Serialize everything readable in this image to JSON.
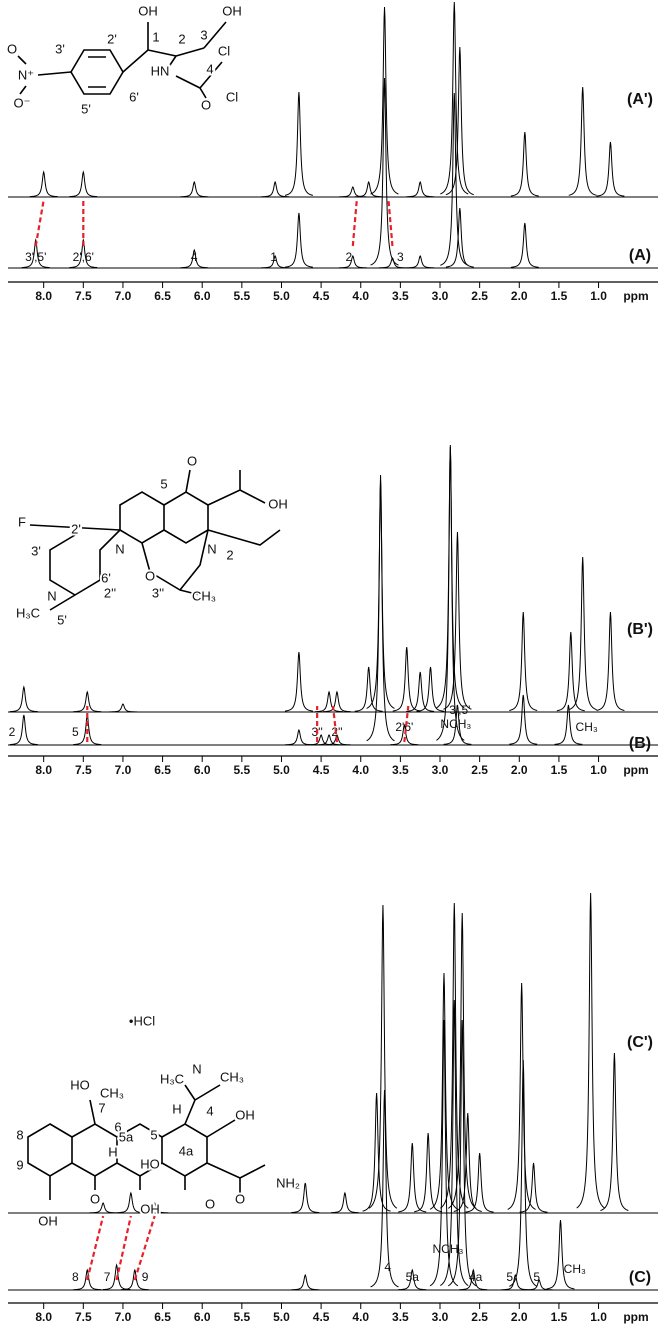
{
  "chart_data": [
    {
      "type": "spectrum",
      "xlabel": "ppm",
      "xlim": [
        8.45,
        0.25
      ],
      "xticks": [
        {
          "value": 8,
          "label": "8.0"
        },
        {
          "value": 7.5,
          "label": "7.5"
        },
        {
          "value": 7,
          "label": "7.0"
        },
        {
          "value": 6.5,
          "label": "6.5"
        },
        {
          "value": 6,
          "label": "6.0"
        },
        {
          "value": 5.5,
          "label": "5.5"
        },
        {
          "value": 5,
          "label": "5.0"
        },
        {
          "value": 4.5,
          "label": "4.5"
        },
        {
          "value": 4,
          "label": "4.0"
        },
        {
          "value": 3.5,
          "label": "3.5"
        },
        {
          "value": 3,
          "label": "3.0"
        },
        {
          "value": 2.5,
          "label": "2.5"
        },
        {
          "value": 2,
          "label": "2.0"
        },
        {
          "value": 1.5,
          "label": "1.5"
        },
        {
          "value": 1,
          "label": "1.0"
        }
      ],
      "series": [
        {
          "name": "(A')",
          "color": "#000000",
          "x": [
            8.0,
            7.5,
            6.1,
            5.08,
            4.78,
            4.1,
            3.9,
            3.7,
            3.25,
            2.82,
            2.75,
            1.93,
            1.2,
            0.85
          ],
          "values": [
            25,
            25,
            15,
            15,
            105,
            10,
            15,
            190,
            15,
            195,
            150,
            65,
            110,
            55
          ]
        },
        {
          "name": "(A)",
          "color": "#000000",
          "x": [
            8.1,
            7.5,
            6.1,
            5.08,
            4.78,
            4.1,
            3.7,
            3.6,
            3.25,
            2.82,
            2.75,
            1.93
          ],
          "values": [
            28,
            28,
            18,
            12,
            55,
            12,
            190,
            10,
            12,
            175,
            60,
            45
          ]
        }
      ],
      "annotations": [
        {
          "text": "3',5'",
          "x": 8.1
        },
        {
          "text": "2',6'",
          "x": 7.5
        },
        {
          "text": "4",
          "x": 6.1
        },
        {
          "text": "1",
          "x": 5.1
        },
        {
          "text": "2",
          "x": 4.15
        },
        {
          "text": "3",
          "x": 3.5
        }
      ],
      "correlations": [
        [
          8.1,
          8.0
        ],
        [
          7.5,
          7.5
        ],
        [
          4.1,
          4.05
        ],
        [
          3.6,
          3.65
        ]
      ],
      "structure_labels": [
        "OH",
        "1",
        "2",
        "3",
        "OH",
        "2'",
        "3'",
        "6'",
        "5'",
        "HN",
        "4",
        "Cl",
        "Cl",
        "O",
        "N⁺",
        "O",
        "O⁻"
      ]
    },
    {
      "type": "spectrum",
      "xlabel": "ppm",
      "xlim": [
        8.45,
        0.25
      ],
      "xticks": [
        {
          "value": 8,
          "label": "8.0"
        },
        {
          "value": 7.5,
          "label": "7.5"
        },
        {
          "value": 7,
          "label": "7.0"
        },
        {
          "value": 6.5,
          "label": "6.5"
        },
        {
          "value": 6,
          "label": "6.0"
        },
        {
          "value": 5.5,
          "label": "5.5"
        },
        {
          "value": 5,
          "label": "5.0"
        },
        {
          "value": 4.5,
          "label": "4.5"
        },
        {
          "value": 4,
          "label": "4.0"
        },
        {
          "value": 3.5,
          "label": "3.5"
        },
        {
          "value": 3,
          "label": "3.0"
        },
        {
          "value": 2.5,
          "label": "2.5"
        },
        {
          "value": 2,
          "label": "2.0"
        },
        {
          "value": 1.5,
          "label": "1.5"
        },
        {
          "value": 1,
          "label": "1.0"
        }
      ],
      "series": [
        {
          "name": "(B')",
          "color": "#000000",
          "x": [
            8.25,
            7.45,
            7.0,
            4.78,
            4.4,
            4.3,
            3.9,
            3.75,
            3.42,
            3.25,
            3.12,
            2.87,
            2.78,
            1.95,
            1.35,
            1.2,
            0.85
          ],
          "values": [
            25,
            20,
            8,
            60,
            20,
            20,
            45,
            230,
            65,
            40,
            45,
            265,
            180,
            100,
            80,
            155,
            100
          ]
        },
        {
          "name": "(B)",
          "color": "#000000",
          "x": [
            8.25,
            7.45,
            4.78,
            4.5,
            4.4,
            4.3,
            3.75,
            3.45,
            2.87,
            2.78,
            1.95,
            1.38
          ],
          "values": [
            30,
            30,
            15,
            10,
            10,
            10,
            270,
            20,
            300,
            40,
            50,
            40
          ]
        }
      ],
      "annotations": [
        {
          "text": "2",
          "x": 8.4
        },
        {
          "text": "5",
          "x": 7.6
        },
        {
          "text": "3''",
          "x": 4.55
        },
        {
          "text": "2''",
          "x": 4.3
        },
        {
          "text": "2'6'",
          "x": 3.45
        },
        {
          "text": "3',5'",
          "x": 2.75
        },
        {
          "text": "NCH₃",
          "x": 2.8
        },
        {
          "text": "CH₃",
          "x": 1.15
        }
      ],
      "correlations": [
        [
          7.45,
          7.45
        ],
        [
          4.55,
          4.55
        ],
        [
          4.3,
          4.35
        ],
        [
          3.45,
          3.4
        ]
      ],
      "structure_labels": [
        "O",
        "OH",
        "F",
        "5",
        "2",
        "N",
        "N",
        "2'",
        "3'",
        "6'",
        "5'",
        "H₃C",
        "N",
        "O",
        "2''",
        "3''",
        "CH₃"
      ]
    },
    {
      "type": "spectrum",
      "xlabel": "ppm",
      "xlim": [
        8.45,
        0.25
      ],
      "xticks": [
        {
          "value": 8,
          "label": "8.0"
        },
        {
          "value": 7.5,
          "label": "7.5"
        },
        {
          "value": 7,
          "label": "7.0"
        },
        {
          "value": 6.5,
          "label": "6.5"
        },
        {
          "value": 6,
          "label": "6.0"
        },
        {
          "value": 5.5,
          "label": "5.5"
        },
        {
          "value": 5,
          "label": "5.0"
        },
        {
          "value": 4.5,
          "label": "4.5"
        },
        {
          "value": 4,
          "label": "4.0"
        },
        {
          "value": 3.5,
          "label": "3.5"
        },
        {
          "value": 3,
          "label": "3.0"
        },
        {
          "value": 2.5,
          "label": "2.5"
        },
        {
          "value": 2,
          "label": "2.0"
        },
        {
          "value": 1.5,
          "label": "1.5"
        },
        {
          "value": 1,
          "label": "1.0"
        }
      ],
      "series": [
        {
          "name": "(C')",
          "color": "#000000",
          "x": [
            7.25,
            6.9,
            6.6,
            4.7,
            4.2,
            3.8,
            3.72,
            3.35,
            3.15,
            2.95,
            2.82,
            2.72,
            2.65,
            2.5,
            1.97,
            1.82,
            1.1,
            0.8
          ],
          "values": [
            10,
            20,
            10,
            30,
            20,
            120,
            308,
            70,
            80,
            240,
            310,
            300,
            100,
            60,
            230,
            50,
            320,
            160
          ]
        },
        {
          "name": "(C)",
          "color": "#000000",
          "x": [
            7.45,
            7.08,
            6.85,
            4.7,
            3.7,
            3.35,
            2.95,
            2.82,
            2.72,
            2.58,
            2.05,
            1.95,
            1.75,
            1.48
          ],
          "values": [
            20,
            25,
            20,
            15,
            200,
            20,
            270,
            290,
            270,
            20,
            15,
            230,
            10,
            70
          ]
        }
      ],
      "annotations": [
        {
          "text": "8",
          "x": 7.6
        },
        {
          "text": "7",
          "x": 7.2
        },
        {
          "text": "9",
          "x": 6.72
        },
        {
          "text": "4",
          "x": 3.66
        },
        {
          "text": "5a",
          "x": 3.35
        },
        {
          "text": "NCH₃",
          "x": 2.9
        },
        {
          "text": "4a",
          "x": 2.55
        },
        {
          "text": "5",
          "x": 2.12
        },
        {
          "text": "5",
          "x": 1.78
        },
        {
          "text": "CH₃",
          "x": 1.3
        }
      ],
      "correlations": [
        [
          7.45,
          7.25
        ],
        [
          7.08,
          6.9
        ],
        [
          6.85,
          6.6
        ]
      ],
      "structure_labels": [
        "•HCl",
        "H₃C",
        "N",
        "CH₃",
        "HO",
        "CH₃",
        "H",
        "4",
        "OH",
        "7",
        "6",
        "5a",
        "5",
        "8",
        "H",
        "HO",
        "4a",
        "9",
        "NH₂",
        "OH",
        "O",
        "OH",
        "O",
        "O"
      ]
    }
  ]
}
